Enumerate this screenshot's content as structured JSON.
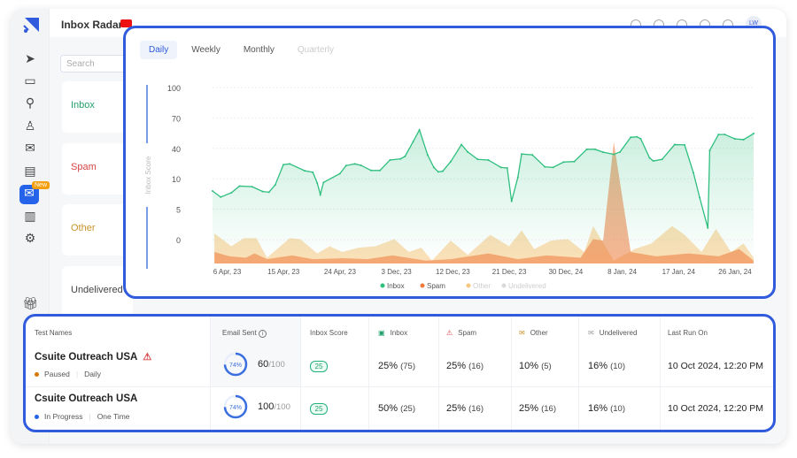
{
  "header": {
    "title": "Inbox Radar",
    "avatar": "LW"
  },
  "sidebar": {
    "icons": [
      "send-icon",
      "inbox-icon",
      "search-icon",
      "contacts-icon",
      "mail-settings-icon",
      "document-icon",
      "inbox-radar-icon",
      "analytics-icon",
      "settings-icon",
      "gift-icon"
    ],
    "new_badge": "New"
  },
  "left_panel": {
    "search_placeholder": "Search",
    "categories": [
      {
        "label": "Inbox",
        "color": "#22a06b"
      },
      {
        "label": "Spam",
        "color": "#d64545"
      },
      {
        "label": "Other",
        "color": "#c9922b"
      },
      {
        "label": "Undelivered",
        "color": "#444444"
      }
    ]
  },
  "chart_tabs": [
    {
      "label": "Daily",
      "state": "active"
    },
    {
      "label": "Weekly",
      "state": "normal"
    },
    {
      "label": "Monthly",
      "state": "normal"
    },
    {
      "label": "Quarterly",
      "state": "disabled"
    }
  ],
  "chart_data": {
    "type": "area",
    "ylabel": "Inbox Score",
    "yticks": [
      100,
      70,
      40,
      10,
      5,
      0
    ],
    "xticks": [
      "6 Apr, 23",
      "15 Apr, 23",
      "24 Apr, 23",
      "3 Dec, 23",
      "12 Dec, 23",
      "21 Dec, 23",
      "30 Dec, 24",
      "8 Jan, 24",
      "17 Jan, 24",
      "26 Jan, 24"
    ],
    "grid": true,
    "legend_position": "bottom",
    "series": [
      {
        "name": "Inbox",
        "color": "#2fbf7f",
        "points": [
          [
            0,
            8
          ],
          [
            1.3,
            7
          ],
          [
            3,
            7.7
          ],
          [
            4.3,
            8.8
          ],
          [
            6.3,
            8.7
          ],
          [
            8,
            7.9
          ],
          [
            9,
            7.8
          ],
          [
            10,
            9
          ],
          [
            11.3,
            23.9
          ],
          [
            12.3,
            24.7
          ],
          [
            14.7,
            17.9
          ],
          [
            16,
            16.4
          ],
          [
            16.7,
            9.3
          ],
          [
            17.2,
            7.4
          ],
          [
            17.7,
            9.4
          ],
          [
            20.3,
            15
          ],
          [
            21.3,
            23
          ],
          [
            22.7,
            24.7
          ],
          [
            23.7,
            23.2
          ],
          [
            25.3,
            18.2
          ],
          [
            26.7,
            18.2
          ],
          [
            28.3,
            28.5
          ],
          [
            30,
            29.7
          ],
          [
            30.7,
            32.1
          ],
          [
            32,
            46.6
          ],
          [
            33,
            58.3
          ],
          [
            34.3,
            33.6
          ],
          [
            35.3,
            21.2
          ],
          [
            36,
            16.8
          ],
          [
            36.7,
            17.4
          ],
          [
            38,
            27
          ],
          [
            39.7,
            43.7
          ],
          [
            40.7,
            36.5
          ],
          [
            42.3,
            29.1
          ],
          [
            44,
            28.5
          ],
          [
            46,
            21.2
          ],
          [
            47,
            20.6
          ],
          [
            47.7,
            6.3
          ],
          [
            48.7,
            11.5
          ],
          [
            49.3,
            34.4
          ],
          [
            51,
            33.6
          ],
          [
            53,
            21.8
          ],
          [
            54.3,
            21.2
          ],
          [
            56,
            26.5
          ],
          [
            57.7,
            27
          ],
          [
            59.7,
            39.1
          ],
          [
            61,
            39.1
          ],
          [
            62.3,
            36.2
          ],
          [
            64,
            34.1
          ],
          [
            65,
            36.5
          ],
          [
            66.7,
            50.9
          ],
          [
            67.7,
            51.4
          ],
          [
            68.3,
            49.4
          ],
          [
            69.7,
            30.6
          ],
          [
            70.3,
            27.6
          ],
          [
            71.7,
            29.1
          ],
          [
            73.7,
            43.7
          ],
          [
            75.3,
            43.4
          ],
          [
            76.7,
            15.9
          ],
          [
            77.7,
            6.9
          ],
          [
            79,
            1.9
          ],
          [
            79.3,
            38
          ],
          [
            80.7,
            53.7
          ],
          [
            81.7,
            53.7
          ],
          [
            83.3,
            49.4
          ],
          [
            84.7,
            48.6
          ],
          [
            86.3,
            54.6
          ]
        ]
      },
      {
        "name": "Spam",
        "color": "#f07a3a",
        "points": [
          [
            0.3,
            4.8
          ],
          [
            2.7,
            3
          ],
          [
            5.3,
            2.4
          ],
          [
            6.7,
            4.2
          ],
          [
            8.7,
            1.8
          ],
          [
            12.7,
            3.4
          ],
          [
            16,
            1.8
          ],
          [
            20.7,
            2.2
          ],
          [
            24.7,
            1.8
          ],
          [
            28.7,
            3.4
          ],
          [
            34,
            1.2
          ],
          [
            38,
            1.8
          ],
          [
            44,
            4.2
          ],
          [
            48.7,
            1.8
          ],
          [
            53.3,
            3.4
          ],
          [
            58.7,
            2.4
          ],
          [
            60.7,
            10.2
          ],
          [
            62.3,
            9.6
          ],
          [
            64,
            50.9
          ],
          [
            66.7,
            4.8
          ],
          [
            70.7,
            3
          ],
          [
            76,
            4.2
          ],
          [
            80.7,
            3
          ],
          [
            84,
            6
          ],
          [
            86.3,
            1.2
          ]
        ]
      },
      {
        "name": "Other",
        "color": "#f8c77e",
        "points": [
          [
            0.3,
            12.6
          ],
          [
            3,
            7.2
          ],
          [
            5,
            10.6
          ],
          [
            7,
            10.6
          ],
          [
            8.7,
            2.4
          ],
          [
            12.3,
            10.6
          ],
          [
            14,
            10.2
          ],
          [
            16.7,
            4.2
          ],
          [
            18.7,
            7.2
          ],
          [
            20.7,
            4.8
          ],
          [
            23.3,
            6.6
          ],
          [
            26,
            7.2
          ],
          [
            29,
            10.2
          ],
          [
            31.3,
            4.8
          ],
          [
            33.3,
            6.6
          ],
          [
            35,
            1.2
          ],
          [
            38,
            9.6
          ],
          [
            40.7,
            3.6
          ],
          [
            44.3,
            12
          ],
          [
            47.3,
            7.2
          ],
          [
            49.3,
            13.9
          ],
          [
            51.3,
            6
          ],
          [
            54,
            9.6
          ],
          [
            56.7,
            10.2
          ],
          [
            59.3,
            4.8
          ],
          [
            60.7,
            15.7
          ],
          [
            64,
            1.2
          ],
          [
            67.3,
            6
          ],
          [
            70,
            8.4
          ],
          [
            73.3,
            15.7
          ],
          [
            75.3,
            12
          ],
          [
            78,
            4.8
          ],
          [
            80.3,
            14.5
          ],
          [
            82.7,
            4.8
          ],
          [
            84.7,
            8.4
          ],
          [
            86.3,
            2.4
          ]
        ]
      },
      {
        "name": "Undelivered",
        "color": "#d9d9d9",
        "points": []
      }
    ]
  },
  "table": {
    "headers": [
      "Test Names",
      "Email Sent",
      "Inbox Score",
      "Inbox",
      "Spam",
      "Other",
      "Undelivered",
      "Last Run On"
    ],
    "rows": [
      {
        "name": "Csuite Outreach USA",
        "warning": true,
        "status": "Paused",
        "status_color": "#d97706",
        "schedule": "Daily",
        "progress": "74%",
        "progress_value": 74,
        "sent": "60",
        "total": "/100",
        "score": "25",
        "inbox": "25%",
        "inbox_n": "(75)",
        "spam": "25%",
        "spam_n": "(16)",
        "other": "10%",
        "other_n": "(5)",
        "undelivered": "16%",
        "undelivered_n": "(10)",
        "last_run": "10 Oct 2024, 12:20 PM"
      },
      {
        "name": "Csuite Outreach USA",
        "warning": false,
        "status": "In Progress",
        "status_color": "#2563eb",
        "schedule": "One Time",
        "progress": "74%",
        "progress_value": 74,
        "sent": "100",
        "total": "/100",
        "score": "25",
        "inbox": "50%",
        "inbox_n": "(25)",
        "spam": "25%",
        "spam_n": "(16)",
        "other": "25%",
        "other_n": "(16)",
        "undelivered": "16%",
        "undelivered_n": "(10)",
        "last_run": "10 Oct 2024, 12:20 PM"
      }
    ]
  }
}
